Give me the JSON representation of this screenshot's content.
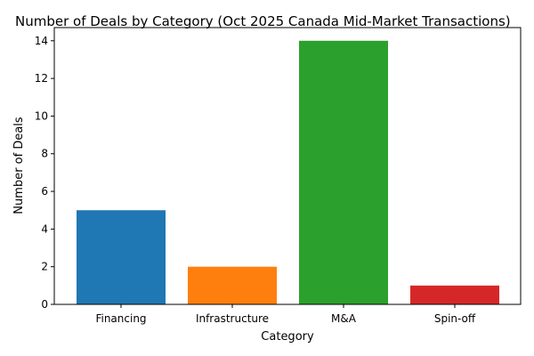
{
  "chart_data": {
    "type": "bar",
    "title": "Number of Deals by Category (Oct 2025 Canada Mid-Market Transactions)",
    "xlabel": "Category",
    "ylabel": "Number of Deals",
    "categories": [
      "Financing",
      "Infrastructure",
      "M&A",
      "Spin-off"
    ],
    "values": [
      5,
      2,
      14,
      1
    ],
    "colors": [
      "#1f77b4",
      "#ff7f0e",
      "#2ca02c",
      "#d62728"
    ],
    "ylim": [
      0,
      14.7
    ],
    "yticks": [
      0,
      2,
      4,
      6,
      8,
      10,
      12,
      14
    ],
    "grid": false,
    "legend": "none"
  }
}
